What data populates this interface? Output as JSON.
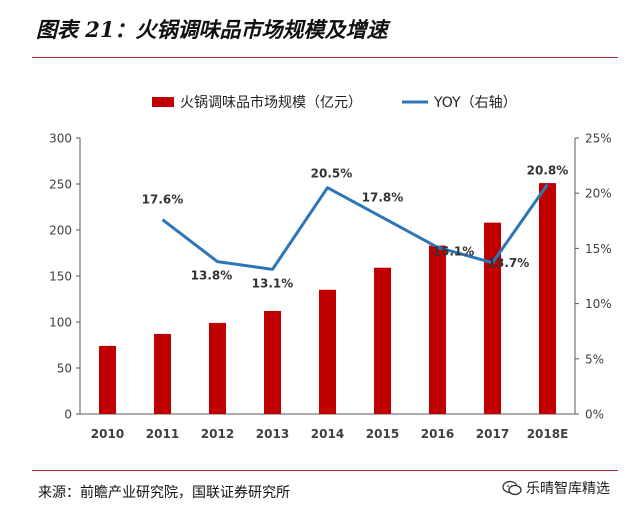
{
  "title": "图表 21：火锅调味品市场规模及增速",
  "source": "来源：前瞻产业研究院，国联证券研究所",
  "watermark": "乐晴智库精选",
  "colors": {
    "bar": "#c00000",
    "line": "#2e75b6",
    "rule": "#b3263a",
    "text": "#404040"
  },
  "chart_data": {
    "type": "bar",
    "categories": [
      "2010",
      "2011",
      "2012",
      "2013",
      "2014",
      "2015",
      "2016",
      "2017",
      "2018E"
    ],
    "series": [
      {
        "name": "火锅调味品市场规模（亿元）",
        "type": "bar",
        "axis": "left",
        "values": [
          74,
          87,
          99,
          112,
          135,
          159,
          183,
          208,
          251
        ]
      },
      {
        "name": "YOY（右轴）",
        "type": "line",
        "axis": "right",
        "values": [
          null,
          17.6,
          13.8,
          13.1,
          20.5,
          17.8,
          15.1,
          13.7,
          20.8
        ],
        "labels": [
          "",
          "17.6%",
          "13.8%",
          "13.1%",
          "20.5%",
          "17.8%",
          "15.1%",
          "13.7%",
          "20.8%"
        ]
      }
    ],
    "y_left": {
      "min": 0,
      "max": 300,
      "ticks": [
        "0",
        "50",
        "100",
        "150",
        "200",
        "250",
        "300"
      ]
    },
    "y_right": {
      "min": 0,
      "max": 25,
      "ticks": [
        "0%",
        "5%",
        "10%",
        "15%",
        "20%",
        "25%"
      ]
    },
    "legend": "top-center",
    "grid": false
  }
}
